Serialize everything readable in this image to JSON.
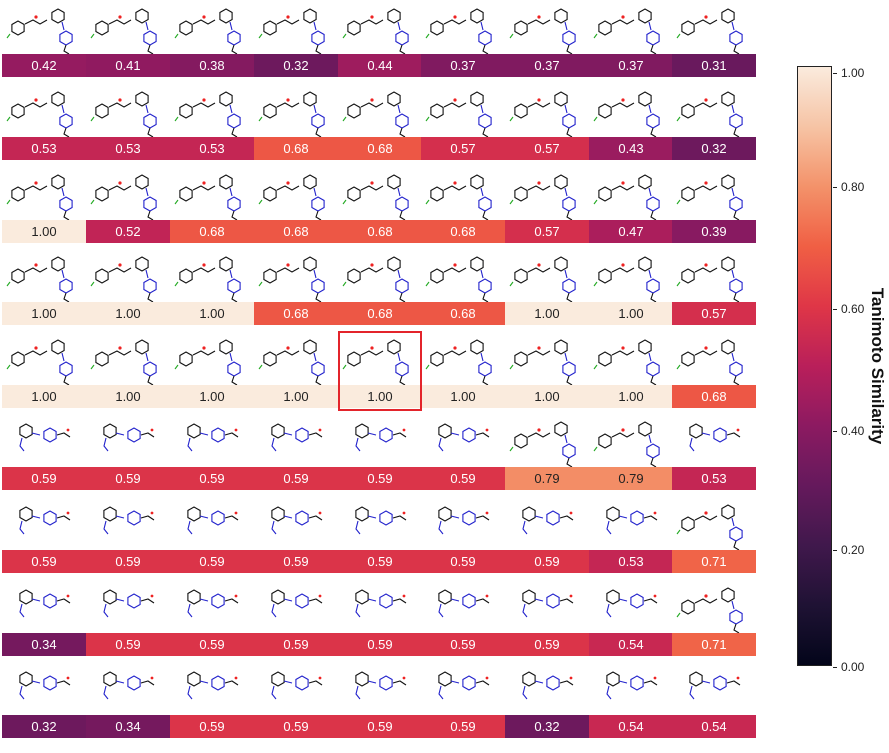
{
  "chart_data": {
    "type": "heatmap",
    "rows": 9,
    "cols": 9,
    "values": [
      [
        0.42,
        0.41,
        0.38,
        0.32,
        0.44,
        0.37,
        0.37,
        0.37,
        0.31
      ],
      [
        0.53,
        0.53,
        0.53,
        0.68,
        0.68,
        0.57,
        0.57,
        0.43,
        0.32
      ],
      [
        1.0,
        0.52,
        0.68,
        0.68,
        0.68,
        0.68,
        0.57,
        0.47,
        0.39
      ],
      [
        1.0,
        1.0,
        1.0,
        0.68,
        0.68,
        0.68,
        1.0,
        1.0,
        0.57
      ],
      [
        1.0,
        1.0,
        1.0,
        1.0,
        1.0,
        1.0,
        1.0,
        1.0,
        0.68
      ],
      [
        0.59,
        0.59,
        0.59,
        0.59,
        0.59,
        0.59,
        0.79,
        0.79,
        0.53
      ],
      [
        0.59,
        0.59,
        0.59,
        0.59,
        0.59,
        0.59,
        0.59,
        0.53,
        0.71
      ],
      [
        0.34,
        0.59,
        0.59,
        0.59,
        0.59,
        0.59,
        0.59,
        0.54,
        0.71
      ],
      [
        0.32,
        0.34,
        0.59,
        0.59,
        0.59,
        0.59,
        0.32,
        0.54,
        0.54
      ]
    ],
    "labels": [
      [
        "0.42",
        "0.41",
        "0.38",
        "0.32",
        "0.44",
        "0.37",
        "0.37",
        "0.37",
        "0.31"
      ],
      [
        "0.53",
        "0.53",
        "0.53",
        "0.68",
        "0.68",
        "0.57",
        "0.57",
        "0.43",
        "0.32"
      ],
      [
        "1.00",
        "0.52",
        "0.68",
        "0.68",
        "0.68",
        "0.68",
        "0.57",
        "0.47",
        "0.39"
      ],
      [
        "1.00",
        "1.00",
        "1.00",
        "0.68",
        "0.68",
        "0.68",
        "1.00",
        "1.00",
        "0.57"
      ],
      [
        "1.00",
        "1.00",
        "1.00",
        "1.00",
        "1.00",
        "1.00",
        "1.00",
        "1.00",
        "0.68"
      ],
      [
        "0.59",
        "0.59",
        "0.59",
        "0.59",
        "0.59",
        "0.59",
        "0.79",
        "0.79",
        "0.53"
      ],
      [
        "0.59",
        "0.59",
        "0.59",
        "0.59",
        "0.59",
        "0.59",
        "0.59",
        "0.53",
        "0.71"
      ],
      [
        "0.34",
        "0.59",
        "0.59",
        "0.59",
        "0.59",
        "0.59",
        "0.59",
        "0.54",
        "0.71"
      ],
      [
        "0.32",
        "0.34",
        "0.59",
        "0.59",
        "0.59",
        "0.59",
        "0.32",
        "0.54",
        "0.54"
      ]
    ],
    "highlight": {
      "row": 4,
      "col": 4
    },
    "highlight_color": "#e3242b",
    "colormap": "rocket",
    "colorbar": {
      "label": "Tanimoto Similarity",
      "range": [
        0,
        1
      ],
      "ticks": [
        "0.00",
        "0.20",
        "0.40",
        "0.60",
        "0.80",
        "1.00"
      ]
    },
    "cell_image": "molecule-structure-icon"
  }
}
